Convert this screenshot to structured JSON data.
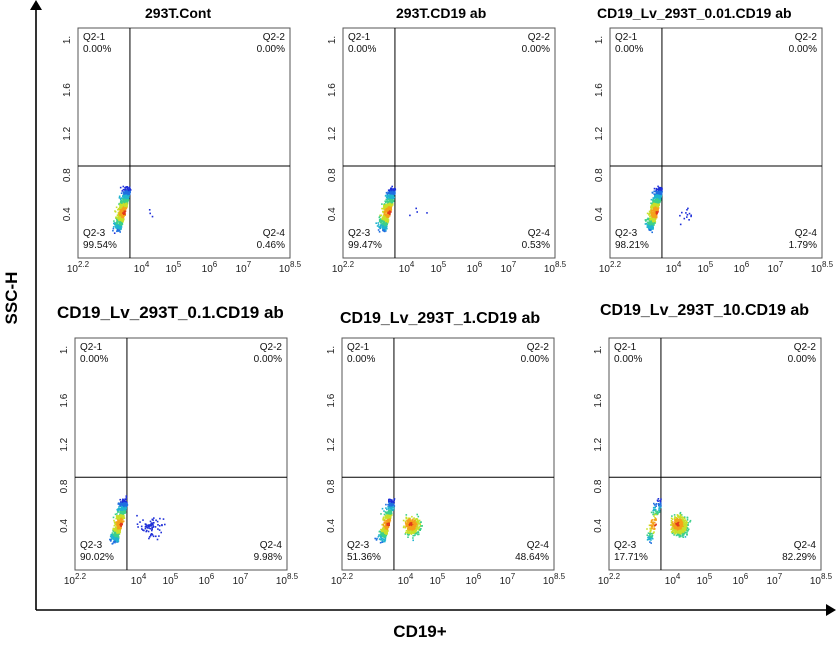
{
  "figure": {
    "x_axis_label": "CD19+",
    "y_axis_label": "SSC-H"
  },
  "chart_data": [
    {
      "type": "scatter",
      "title": "293T.Cont",
      "x_scale": "log",
      "xlim": [
        "10^2.2",
        "10^8.5"
      ],
      "x_tick_labels": [
        "10^2.2",
        "10^4",
        "10^5",
        "10^6",
        "10^7",
        "10^8.5"
      ],
      "y_tick_labels": [
        "0.4",
        "0.8",
        "1.2",
        "1.6"
      ],
      "quadrants": [
        {
          "name": "Q2-1",
          "value": "0.00%"
        },
        {
          "name": "Q2-2",
          "value": "0.00%"
        },
        {
          "name": "Q2-3",
          "value": "99.54%"
        },
        {
          "name": "Q2-4",
          "value": "0.46%"
        }
      ]
    },
    {
      "type": "scatter",
      "title": "293T.CD19 ab",
      "x_scale": "log",
      "xlim": [
        "10^2.2",
        "10^8.5"
      ],
      "x_tick_labels": [
        "10^2.2",
        "10^4",
        "10^5",
        "10^6",
        "10^7",
        "10^8.5"
      ],
      "y_tick_labels": [
        "0.4",
        "0.8",
        "1.2",
        "1.6"
      ],
      "quadrants": [
        {
          "name": "Q2-1",
          "value": "0.00%"
        },
        {
          "name": "Q2-2",
          "value": "0.00%"
        },
        {
          "name": "Q2-3",
          "value": "99.47%"
        },
        {
          "name": "Q2-4",
          "value": "0.53%"
        }
      ]
    },
    {
      "type": "scatter",
      "title": "CD19_Lv_293T_0.01.CD19 ab",
      "x_scale": "log",
      "xlim": [
        "10^2.2",
        "10^8.5"
      ],
      "x_tick_labels": [
        "10^2.2",
        "10^4",
        "10^5",
        "10^6",
        "10^7",
        "10^8.5"
      ],
      "y_tick_labels": [
        "0.4",
        "0.8",
        "1.2",
        "1.6"
      ],
      "quadrants": [
        {
          "name": "Q2-1",
          "value": "0.00%"
        },
        {
          "name": "Q2-2",
          "value": "0.00%"
        },
        {
          "name": "Q2-3",
          "value": "98.21%"
        },
        {
          "name": "Q2-4",
          "value": "1.79%"
        }
      ]
    },
    {
      "type": "scatter",
      "title": "CD19_Lv_293T_0.1.CD19 ab",
      "x_scale": "log",
      "xlim": [
        "10^2.2",
        "10^8.5"
      ],
      "x_tick_labels": [
        "10^2.2",
        "10^4",
        "10^5",
        "10^6",
        "10^7",
        "10^8.5"
      ],
      "y_tick_labels": [
        "0.4",
        "0.8",
        "1.2",
        "1.6"
      ],
      "quadrants": [
        {
          "name": "Q2-1",
          "value": "0.00%"
        },
        {
          "name": "Q2-2",
          "value": "0.00%"
        },
        {
          "name": "Q2-3",
          "value": "90.02%"
        },
        {
          "name": "Q2-4",
          "value": "9.98%"
        }
      ]
    },
    {
      "type": "scatter",
      "title": "CD19_Lv_293T_1.CD19 ab",
      "x_scale": "log",
      "xlim": [
        "10^2.2",
        "10^8.5"
      ],
      "x_tick_labels": [
        "10^2.2",
        "10^4",
        "10^5",
        "10^6",
        "10^7",
        "10^8.5"
      ],
      "y_tick_labels": [
        "0.4",
        "0.8",
        "1.2",
        "1.6"
      ],
      "quadrants": [
        {
          "name": "Q2-1",
          "value": "0.00%"
        },
        {
          "name": "Q2-2",
          "value": "0.00%"
        },
        {
          "name": "Q2-3",
          "value": "51.36%"
        },
        {
          "name": "Q2-4",
          "value": "48.64%"
        }
      ]
    },
    {
      "type": "scatter",
      "title": "CD19_Lv_293T_10.CD19 ab",
      "x_scale": "log",
      "xlim": [
        "10^2.2",
        "10^8.5"
      ],
      "x_tick_labels": [
        "10^2.2",
        "10^4",
        "10^5",
        "10^6",
        "10^7",
        "10^8.5"
      ],
      "y_tick_labels": [
        "0.4",
        "0.8",
        "1.2",
        "1.6"
      ],
      "quadrants": [
        {
          "name": "Q2-1",
          "value": "0.00%"
        },
        {
          "name": "Q2-2",
          "value": "0.00%"
        },
        {
          "name": "Q2-3",
          "value": "17.71%"
        },
        {
          "name": "Q2-4",
          "value": "82.29%"
        }
      ]
    }
  ]
}
